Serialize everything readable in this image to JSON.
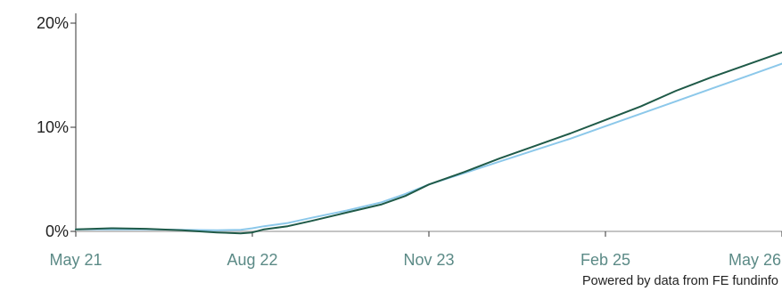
{
  "chart_data": {
    "type": "line",
    "title": "",
    "xlabel": "",
    "ylabel": "",
    "x_range": [
      "2021-05",
      "2026-05"
    ],
    "ylim": [
      0,
      20
    ],
    "y_ticks": [
      "0%",
      "10%",
      "20%"
    ],
    "x_ticks": [
      "May 21",
      "Aug 22",
      "Nov 23",
      "Feb 25",
      "May 26"
    ],
    "grid": false,
    "legend": "none",
    "zero_line_color": "#c4c4c4",
    "series": [
      {
        "color": "#1f5a48",
        "points": [
          [
            "2021-05",
            0.2
          ],
          [
            "2021-08",
            0.3
          ],
          [
            "2021-11",
            0.25
          ],
          [
            "2022-02",
            0.1
          ],
          [
            "2022-05",
            -0.1
          ],
          [
            "2022-07",
            -0.2
          ],
          [
            "2022-08",
            -0.1
          ],
          [
            "2022-09",
            0.2
          ],
          [
            "2022-11",
            0.5
          ],
          [
            "2023-01",
            1.0
          ],
          [
            "2023-04",
            1.8
          ],
          [
            "2023-07",
            2.6
          ],
          [
            "2023-09",
            3.4
          ],
          [
            "2023-11",
            4.5
          ],
          [
            "2024-02",
            5.7
          ],
          [
            "2024-05",
            7.0
          ],
          [
            "2024-08",
            8.2
          ],
          [
            "2024-11",
            9.4
          ],
          [
            "2025-02",
            10.7
          ],
          [
            "2025-05",
            12.0
          ],
          [
            "2025-08",
            13.5
          ],
          [
            "2025-11",
            14.8
          ],
          [
            "2026-02",
            16.0
          ],
          [
            "2026-05",
            17.2
          ]
        ]
      },
      {
        "color": "#8cc8ea",
        "points": [
          [
            "2021-05",
            0.2
          ],
          [
            "2021-08",
            0.2
          ],
          [
            "2021-11",
            0.2
          ],
          [
            "2022-02",
            0.15
          ],
          [
            "2022-05",
            0.1
          ],
          [
            "2022-07",
            0.15
          ],
          [
            "2022-08",
            0.3
          ],
          [
            "2022-09",
            0.5
          ],
          [
            "2022-11",
            0.8
          ],
          [
            "2023-01",
            1.3
          ],
          [
            "2023-04",
            2.0
          ],
          [
            "2023-07",
            2.8
          ],
          [
            "2023-09",
            3.6
          ],
          [
            "2023-11",
            4.5
          ],
          [
            "2024-02",
            5.6
          ],
          [
            "2024-05",
            6.7
          ],
          [
            "2024-08",
            7.8
          ],
          [
            "2024-11",
            8.9
          ],
          [
            "2025-02",
            10.1
          ],
          [
            "2025-05",
            11.3
          ],
          [
            "2025-08",
            12.5
          ],
          [
            "2025-11",
            13.7
          ],
          [
            "2026-02",
            14.9
          ],
          [
            "2026-05",
            16.1
          ]
        ]
      }
    ]
  },
  "footer": {
    "credit": "Powered by data from FE fundinfo"
  }
}
